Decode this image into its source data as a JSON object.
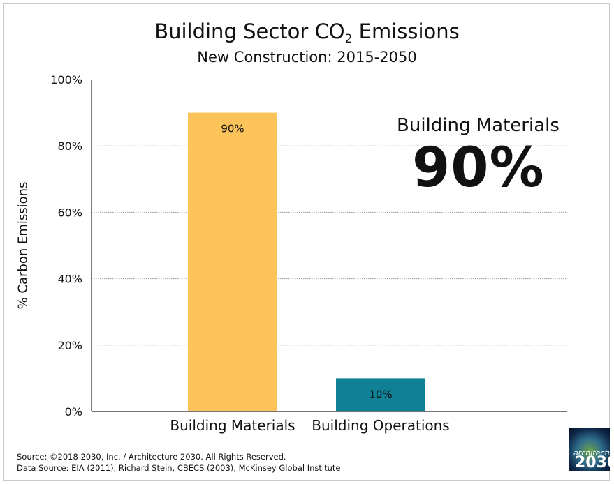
{
  "chart_data": {
    "type": "bar",
    "title_main": "Building Sector CO",
    "title_sub": "2",
    "title_end": " Emissions",
    "subtitle": "New Construction: 2015-2050",
    "ylabel": "% Carbon Emissions",
    "ylim": [
      0,
      100
    ],
    "yticks": [
      0,
      20,
      40,
      60,
      80,
      100
    ],
    "ytick_labels": [
      "0%",
      "20%",
      "40%",
      "60%",
      "80%",
      "100%"
    ],
    "grid": true,
    "categories": [
      "Building Materials",
      "Building Operations"
    ],
    "values": [
      90,
      10
    ],
    "data_labels": [
      "90%",
      "10%"
    ],
    "colors": [
      "#fbc35a",
      "#0f8095"
    ],
    "callout": {
      "label": "Building Materials",
      "value": "90%"
    }
  },
  "footer": {
    "source_line": "Source: ©2018 2030, Inc. / Architecture 2030. All Rights Reserved.",
    "data_source_line": "Data Source: EIA (2011), Richard Stein, CBECS (2003), McKinsey Global Institute"
  },
  "logo": {
    "small_text": "architecture",
    "big_text": "2030"
  }
}
